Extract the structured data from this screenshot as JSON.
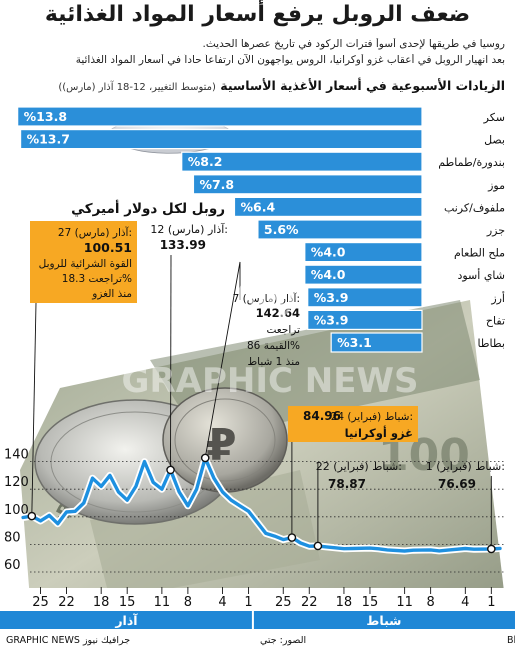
{
  "title": "ضعف الروبل يرفع أسعار المواد الغذائية",
  "subtitle_lines": [
    "روسيا في طريقها لإحدى أسوأ فترات الركود في تاريخ عصرها الحديث.",
    "بعد انهيار الروبل في أعقاب غزو أوكرانيا، الروس يواجهون الآن ارتفاعاً حاداً في أسعار المواد الغذائية"
  ],
  "bar_chart_heading": "الزيادات الأسبوعية في أسعار الأغذية الأساسية",
  "bar_chart_note": "(متوسط التغيير، 12-18 آذار (مارس))",
  "line_chart_title": "روبل لكل دولار أميركي",
  "annotations": {
    "peak_label": "12 آذار (مارس):",
    "peak_value": "133.99",
    "mar27_label": "27 آذار (مارس):",
    "mar27_value": "100.51",
    "mar27_text_1": "القوة الشرائية للروبل",
    "mar27_text_2": "تراجعت 18.3%",
    "mar27_text_3": "منذ الغزو",
    "mar7_label": "7 آذار (مارس):",
    "mar7_value": "142.64",
    "mar7_text_1": "تراجعت",
    "mar7_text_2": "القيمة 86%",
    "mar7_text_3": "منذ 1 شباط",
    "feb24_label": "24 شباط (فبراير):",
    "feb24_value": "84.96",
    "feb24_text": "غزو أوكرانيا",
    "feb22_label": "22 شباط (فبراير):",
    "feb22_value": "78.87",
    "feb1_label": "1 شباط (فبراير):",
    "feb1_value": "76.69"
  },
  "months": {
    "march": "آذار",
    "february": "شباط"
  },
  "footer": {
    "source": "المصدر: Bloomberg, Rosstat Statistics Service",
    "photo": "الصور: جتي",
    "brand": "GRAPHIC NEWS جرافيك نيوز"
  },
  "watermark": "GRAPHIC NEWS",
  "colors": {
    "bar": "#2b8fd9",
    "line": "#1e90e0",
    "highlight_box": "#f7a823",
    "month_band": "#1f87d6",
    "text": "#1a1a1a"
  },
  "chart_data": [
    {
      "type": "bar",
      "orientation": "horizontal",
      "title": "الزيادات الأسبوعية في أسعار الأغذية الأساسية",
      "categories": [
        "سكر",
        "بصل",
        "بندورة/طماطم",
        "موز",
        "ملفوف/كرنب",
        "جزر",
        "ملح الطعام",
        "شاي أسود",
        "أرز",
        "تفاح",
        "بطاطا"
      ],
      "values": [
        13.8,
        13.7,
        8.2,
        7.8,
        6.4,
        5.6,
        4.0,
        4.0,
        3.9,
        3.9,
        3.1
      ],
      "value_labels": [
        "%13.8",
        "%13.7",
        "%8.2",
        "%7.8",
        "%6.4",
        "5.6%",
        "%4.0",
        "%4.0",
        "%3.9",
        "%3.9",
        "%3.1"
      ],
      "unit": "%",
      "xlim": [
        0,
        14.5
      ]
    },
    {
      "type": "line",
      "title": "روبل لكل دولار أميركي",
      "ylim": [
        60,
        150
      ],
      "yticks": [
        60,
        80,
        100,
        120,
        140
      ],
      "x_direction": "right-to-left",
      "xticks": [
        {
          "day": 1,
          "label": "1",
          "month": "شباط"
        },
        {
          "day": 4,
          "label": "4",
          "month": "شباط"
        },
        {
          "day": 8,
          "label": "8",
          "month": "شباط"
        },
        {
          "day": 11,
          "label": "11",
          "month": "شباط"
        },
        {
          "day": 15,
          "label": "15",
          "month": "شباط"
        },
        {
          "day": 18,
          "label": "18",
          "month": "شباط"
        },
        {
          "day": 22,
          "label": "22",
          "month": "شباط"
        },
        {
          "day": 25,
          "label": "25",
          "month": "شباط"
        },
        {
          "day": 29,
          "label": "1",
          "month": "آذار"
        },
        {
          "day": 32,
          "label": "4",
          "month": "آذار"
        },
        {
          "day": 36,
          "label": "8",
          "month": "آذار"
        },
        {
          "day": 39,
          "label": "11",
          "month": "آذار"
        },
        {
          "day": 43,
          "label": "15",
          "month": "آذار"
        },
        {
          "day": 46,
          "label": "18",
          "month": "آذار"
        },
        {
          "day": 50,
          "label": "22",
          "month": "آذار"
        },
        {
          "day": 53,
          "label": "25",
          "month": "آذار"
        }
      ],
      "series": [
        {
          "points": [
            [
              0,
              77.1
            ],
            [
              1,
              76.69
            ],
            [
              3,
              76.5
            ],
            [
              4,
              77.0
            ],
            [
              6,
              75.9
            ],
            [
              7,
              75.3
            ],
            [
              8,
              76.0
            ],
            [
              10,
              75.8
            ],
            [
              11,
              75.2
            ],
            [
              13,
              76.0
            ],
            [
              14,
              76.8
            ],
            [
              15,
              77.3
            ],
            [
              17,
              77.0
            ],
            [
              18,
              76.9
            ],
            [
              20,
              78.2
            ],
            [
              21,
              78.87
            ],
            [
              22,
              78.7
            ],
            [
              23,
              81.0
            ],
            [
              24,
              84.96
            ],
            [
              25,
              83.5
            ],
            [
              26,
              86.0
            ],
            [
              27,
              88.0
            ],
            [
              28,
              96.0
            ],
            [
              29,
              104.0
            ],
            [
              30,
              108.0
            ],
            [
              31,
              112.0
            ],
            [
              32,
              118.0
            ],
            [
              33,
              128.0
            ],
            [
              34,
              142.64
            ],
            [
              35,
              120.0
            ],
            [
              36,
              108.0
            ],
            [
              37,
              118.0
            ],
            [
              38,
              133.99
            ],
            [
              39,
              120.0
            ],
            [
              40,
              125.0
            ],
            [
              41,
              140.0
            ],
            [
              42,
              122.0
            ],
            [
              43,
              112.0
            ],
            [
              44,
              118.0
            ],
            [
              45,
              130.0
            ],
            [
              46,
              122.0
            ],
            [
              47,
              128.0
            ],
            [
              48,
              110.0
            ],
            [
              49,
              104.0
            ],
            [
              50,
              103.5
            ],
            [
              51,
              95.0
            ],
            [
              52,
              101.0
            ],
            [
              53,
              97.0
            ],
            [
              54,
              100.51
            ],
            [
              55,
              99.5
            ]
          ]
        }
      ]
    }
  ]
}
